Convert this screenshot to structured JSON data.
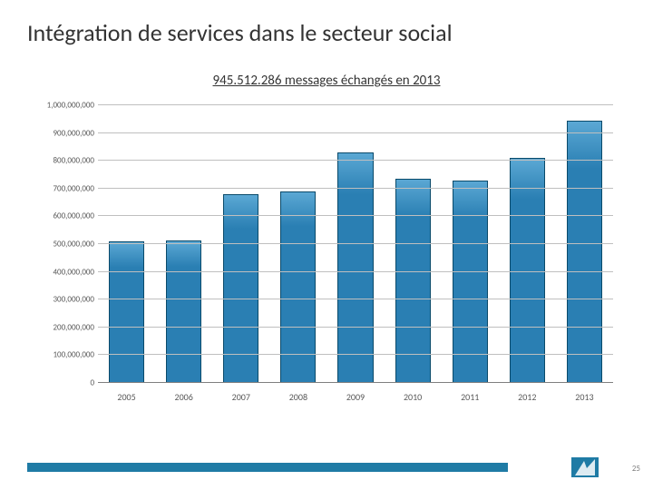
{
  "title": "Intégration de services dans le secteur social",
  "subtitle": "945.512.286 messages échangés en 2013",
  "pageNumber": "25",
  "chart": {
    "type": "bar",
    "categories": [
      "2005",
      "2006",
      "2007",
      "2008",
      "2009",
      "2010",
      "2011",
      "2012",
      "2013"
    ],
    "values": [
      511000000,
      512000000,
      680000000,
      690000000,
      830000000,
      735000000,
      730000000,
      810000000,
      945512286
    ],
    "bar_color": "#2a7fb3",
    "bar_top_color": "#5ba8d4",
    "bar_border": "#0a4a6a",
    "ylim": [
      0,
      1000000000
    ],
    "ytick_step": 100000000,
    "ytick_labels": [
      "0",
      "100,000,000",
      "200,000,000",
      "300,000,000",
      "400,000,000",
      "500,000,000",
      "600,000,000",
      "700,000,000",
      "800,000,000",
      "900,000,000",
      "1,000,000,000"
    ],
    "grid_color": "#bfbfbf",
    "background_color": "#ffffff",
    "label_fontsize": 9,
    "xlabel_fontsize": 10,
    "bar_width_ratio": 0.62
  },
  "footer": {
    "bar_color": "#1f7ba5",
    "logo_colors": {
      "primary": "#1f7ba5",
      "accent": "#ffffff"
    }
  }
}
